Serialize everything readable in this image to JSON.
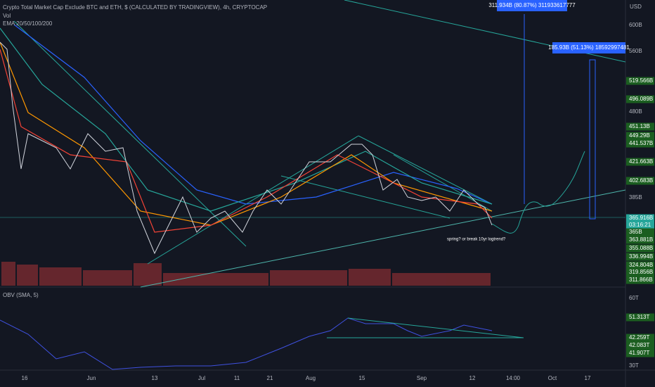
{
  "header": {
    "title": "Crypto Total Market Cap Exclude BTC and ETH, $ (CALCULATED BY TRADINGVIEW), 4h, CRYPTOCAP",
    "volume": "Vol",
    "ema": "EMA 20/50/100/200"
  },
  "price_axis": {
    "unit": "USD",
    "labels": [
      "600B",
      "560B",
      "519.566B",
      "496.089B",
      "480B",
      "451.13B",
      "449.29B",
      "441.537B",
      "421.663B",
      "402.683B",
      "385B",
      "365.916B",
      "03:16:21",
      "365B",
      "363.881B",
      "355.088B",
      "336.994B",
      "324.804B",
      "319.856B",
      "311.866B"
    ]
  },
  "annotations": {
    "target_1": "311.934B (80.87%) 311933617777",
    "target_2": "185.93B (51.13%) 18592997481",
    "note": "spring? or break 10yr logtrend?"
  },
  "obv": {
    "title": "OBV (SMA, 5)",
    "labels": [
      "60T",
      "51.313T",
      "42.259T",
      "42.083T",
      "41.907T",
      "30T"
    ]
  },
  "time_axis": [
    "16",
    "Jun",
    "13",
    "Jul",
    "11",
    "21",
    "Aug",
    "15",
    "Sep",
    "12",
    "14:00",
    "Oct",
    "17"
  ]
}
